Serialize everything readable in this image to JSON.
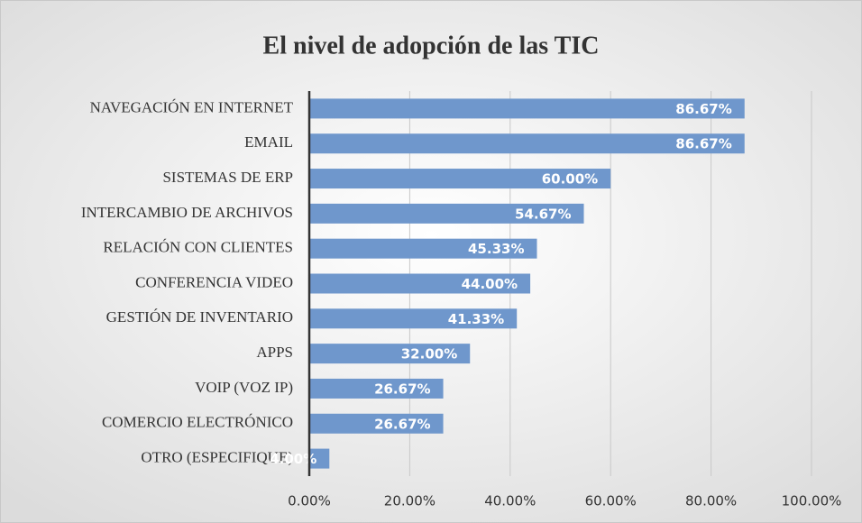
{
  "chart_data": {
    "type": "bar",
    "orientation": "horizontal",
    "title": "El nivel de adopción de las TIC",
    "categories": [
      "NAVEGACIÓN EN INTERNET",
      "EMAIL",
      "SISTEMAS DE ERP",
      "INTERCAMBIO DE ARCHIVOS",
      "RELACIÓN CON CLIENTES",
      "CONFERENCIA VIDEO",
      "GESTIÓN DE INVENTARIO",
      "APPS",
      "VOIP (VOZ IP)",
      "COMERCIO ELECTRÓNICO",
      "OTRO (ESPECIFIQUE)"
    ],
    "values": [
      86.67,
      86.67,
      60,
      54.67,
      45.33,
      44,
      41.33,
      32,
      26.67,
      26.67,
      4
    ],
    "value_labels": [
      "86.67%",
      "86.67%",
      "60.00%",
      "54.67%",
      "45.33%",
      "44.00%",
      "41.33%",
      "32.00%",
      "26.67%",
      "26.67%",
      "4.00%"
    ],
    "color": "#6f97cc",
    "xlim": [
      0,
      100
    ],
    "xticks": [
      {
        "value": 0,
        "label": "0.00%"
      },
      {
        "value": 20,
        "label": "20.00%"
      },
      {
        "value": 40,
        "label": "40.00%"
      },
      {
        "value": 60,
        "label": "60.00%"
      },
      {
        "value": 80,
        "label": "80.00%"
      },
      {
        "value": 100,
        "label": "100.00%"
      }
    ],
    "grid": true
  }
}
